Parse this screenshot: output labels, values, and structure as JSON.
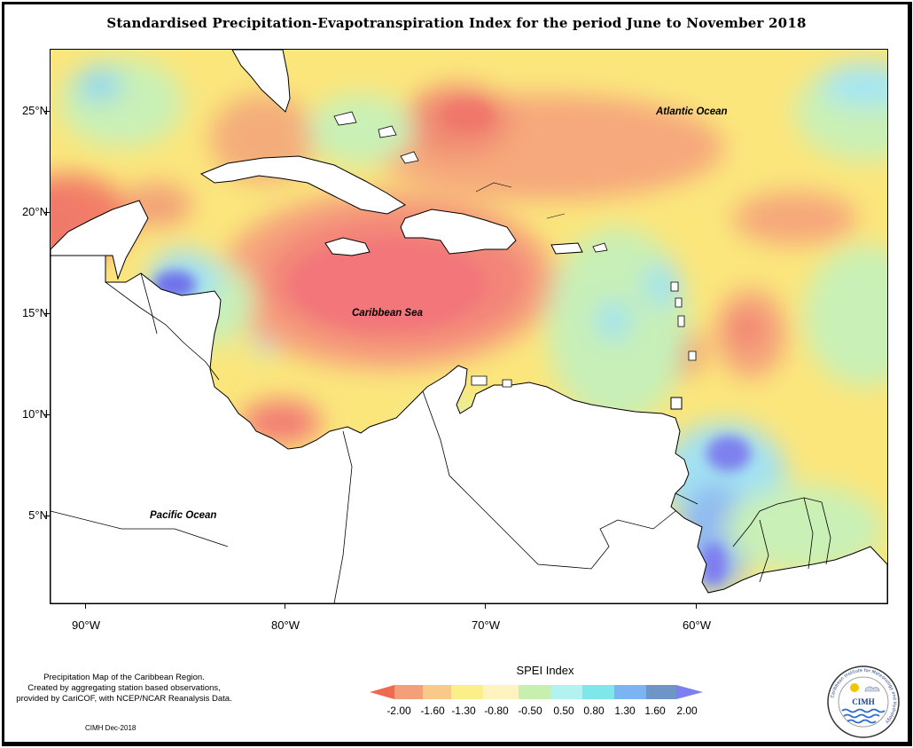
{
  "title": "Standardised Precipitation-Evapotranspiration Index for the period June to November 2018",
  "map": {
    "x_axis": {
      "labels": [
        "90°W",
        "80°W",
        "70°W",
        "60°W"
      ]
    },
    "y_axis": {
      "labels": [
        "25°N",
        "20°N",
        "15°N",
        "10°N",
        "5°N"
      ]
    },
    "oceans": [
      "Atlantic Ocean",
      "Caribbean Sea",
      "Pacific Ocean"
    ],
    "land_color": "#ffffff",
    "coastline_color": "#000000"
  },
  "legend": {
    "title": "SPEI Index",
    "breaks": [
      "-2.00",
      "-1.60",
      "-1.30",
      "-0.80",
      "-0.50",
      "0.50",
      "0.80",
      "1.30",
      "1.60",
      "2.00"
    ],
    "colors": [
      "#ef6b50",
      "#f3a07a",
      "#f9c98a",
      "#fcef8a",
      "#fff3c0",
      "#c7f0b0",
      "#b2f2f1",
      "#7fe6ea",
      "#7cb3f2",
      "#7f8cf2",
      "#7c7ff0"
    ]
  },
  "footer": {
    "note_lines": [
      "Precipitation Map of the Caribbean Region.",
      "Created by aggregating station based observations,",
      "provided by CariCOF, with NCEP/NCAR Reanalysis Data."
    ],
    "credit": "CIMH Dec-2018"
  },
  "logo": {
    "text": "CIMH",
    "ring_text": "Caribbean Institute for Meteorology and Hydrology"
  }
}
